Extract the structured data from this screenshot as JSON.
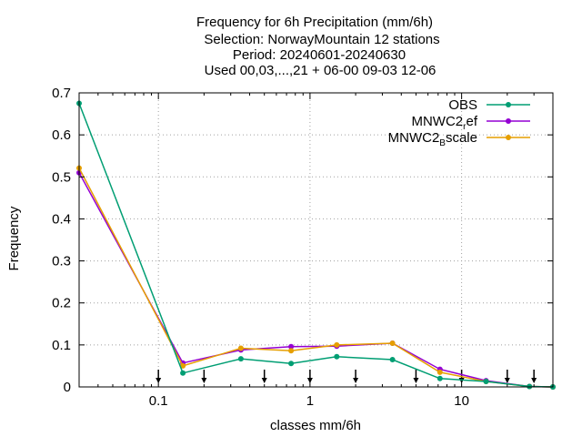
{
  "title": {
    "line1": "Frequency  for 6h Precipitation (mm/6h)",
    "line2": "Selection: NorwayMountain     12 stations",
    "line3": "Period: 20240601-20240630",
    "line4": "Used 00,03,...,21 + 06-00 09-03 12-06"
  },
  "chart_data": {
    "type": "line",
    "xlabel": "classes mm/6h",
    "ylabel": "Frequency",
    "xscale": "log",
    "xlim": [
      0.03,
      40
    ],
    "ylim": [
      0,
      0.7
    ],
    "grid": true,
    "legend_position": "top-right",
    "x_ticks": [
      {
        "value": 0.1,
        "label": "0.1"
      },
      {
        "value": 1,
        "label": "1"
      },
      {
        "value": 10,
        "label": "10"
      }
    ],
    "y_ticks": [
      {
        "value": 0,
        "label": "0"
      },
      {
        "value": 0.1,
        "label": "0.1"
      },
      {
        "value": 0.2,
        "label": "0.2"
      },
      {
        "value": 0.3,
        "label": "0.3"
      },
      {
        "value": 0.4,
        "label": "0.4"
      },
      {
        "value": 0.5,
        "label": "0.5"
      },
      {
        "value": 0.6,
        "label": "0.6"
      },
      {
        "value": 0.7,
        "label": "0.7"
      }
    ],
    "class_limits": [
      0.1,
      0.2,
      0.5,
      1,
      2,
      5,
      10,
      20,
      30
    ],
    "x": [
      0.03,
      0.145,
      0.35,
      0.75,
      1.5,
      3.5,
      7.2,
      14.5,
      28,
      40
    ],
    "series": [
      {
        "name_main": "OBS",
        "name_sub": "",
        "name_rest": "",
        "color": "#009e73",
        "values": [
          0.675,
          0.033,
          0.067,
          0.056,
          0.072,
          0.065,
          0.02,
          0.013,
          0.001,
          0.0
        ]
      },
      {
        "name_main": "MNWC2",
        "name_sub": "r",
        "name_rest": "ef",
        "color": "#9400d3",
        "values": [
          0.51,
          0.057,
          0.088,
          0.096,
          0.097,
          0.104,
          0.042,
          0.015,
          0.001,
          0.0
        ]
      },
      {
        "name_main": "MNWC2",
        "name_sub": "B",
        "name_rest": "scale",
        "color": "#e69f00",
        "values": [
          0.521,
          0.05,
          0.092,
          0.086,
          0.1,
          0.104,
          0.035,
          0.013,
          0.001,
          0.0
        ]
      }
    ]
  }
}
